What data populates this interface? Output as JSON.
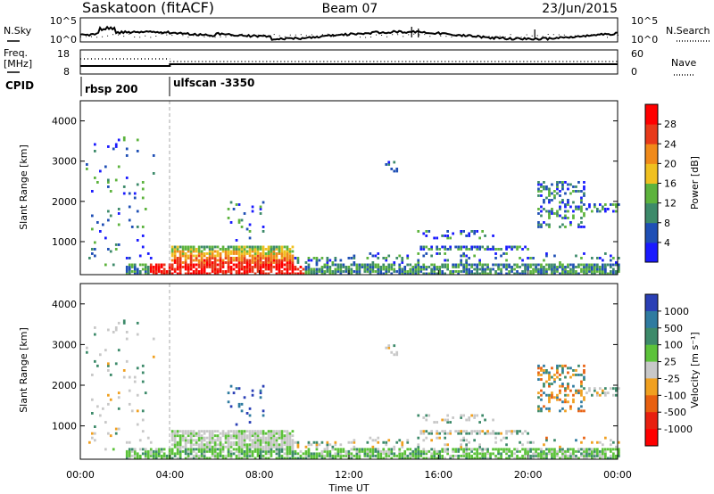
{
  "header": {
    "station": "Saskatoon (fitACF)",
    "beam": "Beam 07",
    "date": "23/Jun/2015"
  },
  "noise_panel": {
    "left_label": "N.Sky",
    "right_label": "N.Search",
    "left_ticks": [
      "10^5",
      "10^0"
    ],
    "right_ticks": [
      "10^5",
      "10^0"
    ]
  },
  "freq_panel": {
    "left_label_1": "Freq.",
    "left_label_2": "[MHz]",
    "left_ticks": [
      "18",
      "8"
    ],
    "right_label": "Nave",
    "right_ticks": [
      "60",
      "0"
    ]
  },
  "cpid_panel": {
    "label": "CPID",
    "segments": [
      {
        "label": "rbsp 200",
        "start_hour": 0
      },
      {
        "label": "ulfscan -3350",
        "start_hour": 4
      }
    ]
  },
  "chart_data": [
    {
      "type": "heatmap",
      "name": "power",
      "ylabel": "Slant Range [km]",
      "ylim": [
        180,
        4500
      ],
      "y_ticks": [
        "1000",
        "2000",
        "3000",
        "4000"
      ],
      "y_tick_values": [
        1000,
        2000,
        3000,
        4000
      ],
      "xlim_hours": [
        0,
        24
      ],
      "colorbar_label": "Power [dB]",
      "colorbar_ticks": [
        "4",
        "8",
        "12",
        "16",
        "20",
        "24",
        "28"
      ],
      "colorbar_colors": [
        "#1a1aff",
        "#1f4fb5",
        "#3d8a6a",
        "#5db33d",
        "#f0c020",
        "#f08a1a",
        "#e83a1a",
        "#ff0000"
      ]
    },
    {
      "type": "heatmap",
      "name": "velocity",
      "ylabel": "Slant Range [km]",
      "ylim": [
        180,
        4500
      ],
      "y_ticks": [
        "1000",
        "2000",
        "3000",
        "4000"
      ],
      "y_tick_values": [
        1000,
        2000,
        3000,
        4000
      ],
      "xlim_hours": [
        0,
        24
      ],
      "x_ticks": [
        "00:00",
        "04:00",
        "08:00",
        "12:00",
        "16:00",
        "20:00",
        "00:00"
      ],
      "xlabel": "Time UT",
      "colorbar_label": "Velocity [m s⁻¹]",
      "colorbar_ticks": [
        "1000",
        "500",
        "100",
        "25",
        "-25",
        "-100",
        "-500",
        "-1000"
      ],
      "colorbar_colors": [
        "#2a3fb5",
        "#2f7ba0",
        "#3d8a6a",
        "#5cc23a",
        "#c8c8c8",
        "#f0a020",
        "#e86010",
        "#e82010",
        "#ff0000"
      ]
    }
  ]
}
